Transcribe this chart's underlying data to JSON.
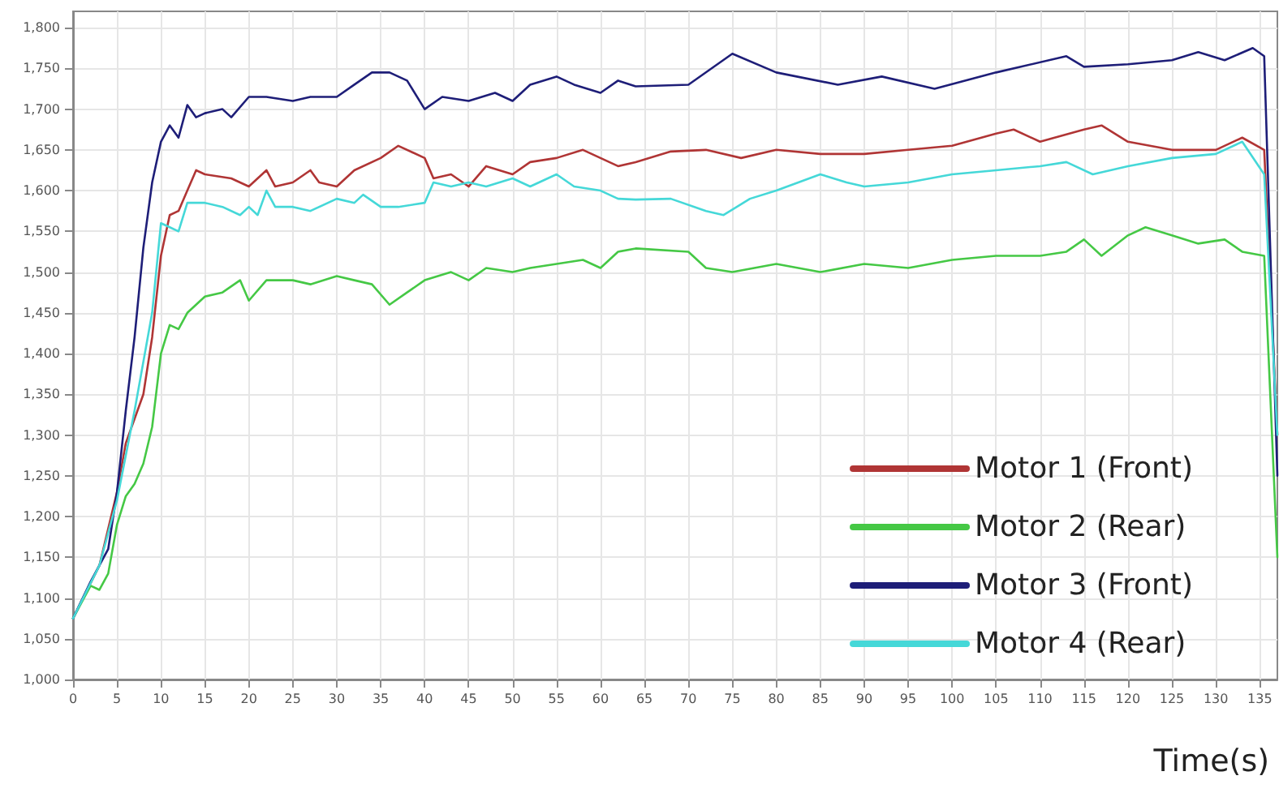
{
  "chart_data": {
    "type": "line",
    "xlabel": "Time(s)",
    "xlim": [
      0,
      137
    ],
    "xticks": [
      0,
      5,
      10,
      15,
      20,
      25,
      30,
      35,
      40,
      45,
      50,
      55,
      60,
      65,
      70,
      75,
      80,
      85,
      90,
      95,
      100,
      105,
      110,
      115,
      120,
      125,
      130,
      135
    ],
    "ylim": [
      1000,
      1820
    ],
    "yticks": [
      {
        "value": 1000,
        "label": "1,000"
      },
      {
        "value": 1050,
        "label": "1,050"
      },
      {
        "value": 1100,
        "label": "1,100"
      },
      {
        "value": 1150,
        "label": "1,150"
      },
      {
        "value": 1200,
        "label": "1,200"
      },
      {
        "value": 1250,
        "label": "1,250"
      },
      {
        "value": 1300,
        "label": "1,300"
      },
      {
        "value": 1350,
        "label": "1,350"
      },
      {
        "value": 1400,
        "label": "1,400"
      },
      {
        "value": 1450,
        "label": "1,450"
      },
      {
        "value": 1500,
        "label": "1,500"
      },
      {
        "value": 1550,
        "label": "1,550"
      },
      {
        "value": 1600,
        "label": "1,600"
      },
      {
        "value": 1650,
        "label": "1,650"
      },
      {
        "value": 1700,
        "label": "1,700"
      },
      {
        "value": 1750,
        "label": "1,750"
      },
      {
        "value": 1800,
        "label": "1,800"
      }
    ],
    "grid": true,
    "legend": "bottom right",
    "marker": "none",
    "line_style": "solid",
    "series": [
      {
        "name": "Motor 1 (Front)",
        "color": "#b03535",
        "x": [
          0,
          3,
          5,
          6,
          7,
          8,
          9,
          10,
          11,
          12,
          13,
          14,
          15,
          18,
          20,
          22,
          23,
          25,
          27,
          28,
          30,
          32,
          35,
          37,
          40,
          41,
          43,
          45,
          47,
          50,
          52,
          55,
          58,
          60,
          62,
          64,
          68,
          72,
          76,
          80,
          85,
          90,
          95,
          100,
          105,
          107,
          110,
          115,
          117,
          120,
          125,
          130,
          133,
          135.5,
          137
        ],
        "values": [
          1075,
          1140,
          1230,
          1290,
          1320,
          1350,
          1420,
          1520,
          1570,
          1575,
          1600,
          1625,
          1620,
          1615,
          1605,
          1625,
          1605,
          1610,
          1625,
          1610,
          1605,
          1625,
          1640,
          1655,
          1640,
          1615,
          1620,
          1605,
          1630,
          1620,
          1635,
          1640,
          1650,
          1640,
          1630,
          1635,
          1648,
          1650,
          1640,
          1650,
          1645,
          1645,
          1650,
          1655,
          1670,
          1675,
          1660,
          1675,
          1680,
          1660,
          1650,
          1650,
          1665,
          1650,
          1300
        ]
      },
      {
        "name": "Motor 2 (Rear)",
        "color": "#45c845",
        "x": [
          0,
          2,
          3,
          4,
          5,
          6,
          7,
          8,
          9,
          10,
          11,
          12,
          13,
          14,
          15,
          17,
          19,
          20,
          22,
          25,
          27,
          30,
          32,
          34,
          36,
          38,
          40,
          43,
          45,
          47,
          50,
          52,
          55,
          58,
          60,
          62,
          64,
          70,
          72,
          75,
          80,
          85,
          90,
          95,
          100,
          105,
          110,
          113,
          115,
          117,
          120,
          122,
          125,
          128,
          131,
          133,
          135.5,
          137
        ],
        "values": [
          1075,
          1115,
          1110,
          1130,
          1190,
          1225,
          1240,
          1265,
          1310,
          1400,
          1435,
          1430,
          1450,
          1460,
          1470,
          1475,
          1490,
          1465,
          1490,
          1490,
          1485,
          1495,
          1490,
          1485,
          1460,
          1475,
          1490,
          1500,
          1490,
          1505,
          1500,
          1505,
          1510,
          1515,
          1505,
          1525,
          1529,
          1525,
          1505,
          1500,
          1510,
          1500,
          1510,
          1505,
          1515,
          1520,
          1520,
          1525,
          1540,
          1520,
          1545,
          1555,
          1545,
          1535,
          1540,
          1525,
          1520,
          1150
        ]
      },
      {
        "name": "Motor 3 (Front)",
        "color": "#1e1e78",
        "x": [
          0,
          2,
          4,
          5,
          6,
          7,
          8,
          9,
          10,
          11,
          12,
          13,
          14,
          15,
          17,
          18,
          20,
          22,
          25,
          27,
          30,
          32,
          34,
          36,
          38,
          40,
          42,
          45,
          48,
          50,
          52,
          55,
          57,
          60,
          62,
          64,
          70,
          75,
          80,
          87,
          92,
          98,
          105,
          113,
          115,
          120,
          125,
          128,
          131,
          134.2,
          135.5,
          137
        ],
        "values": [
          1075,
          1120,
          1160,
          1230,
          1330,
          1420,
          1530,
          1610,
          1660,
          1680,
          1665,
          1705,
          1690,
          1695,
          1700,
          1690,
          1715,
          1715,
          1710,
          1715,
          1715,
          1730,
          1745,
          1745,
          1735,
          1700,
          1715,
          1710,
          1720,
          1710,
          1730,
          1740,
          1730,
          1720,
          1735,
          1728,
          1730,
          1768,
          1745,
          1730,
          1740,
          1725,
          1745,
          1765,
          1752,
          1755,
          1760,
          1770,
          1760,
          1775,
          1765,
          1250
        ]
      },
      {
        "name": "Motor 4 (Rear)",
        "color": "#45d8d8",
        "x": [
          0,
          3,
          5,
          7,
          9,
          10,
          11,
          12,
          13,
          15,
          17,
          19,
          20,
          21,
          22,
          23,
          25,
          27,
          30,
          32,
          33,
          35,
          37,
          40,
          41,
          43,
          45,
          47,
          50,
          52,
          55,
          57,
          60,
          62,
          64,
          68,
          72,
          74,
          77,
          80,
          85,
          88,
          90,
          95,
          100,
          105,
          110,
          113,
          116,
          120,
          125,
          130,
          133,
          135.5,
          137
        ],
        "values": [
          1075,
          1140,
          1220,
          1330,
          1450,
          1560,
          1555,
          1550,
          1585,
          1585,
          1580,
          1570,
          1580,
          1570,
          1600,
          1580,
          1580,
          1575,
          1590,
          1585,
          1595,
          1580,
          1580,
          1585,
          1610,
          1605,
          1610,
          1605,
          1615,
          1605,
          1620,
          1605,
          1600,
          1590,
          1589,
          1590,
          1575,
          1570,
          1590,
          1600,
          1620,
          1610,
          1605,
          1610,
          1620,
          1625,
          1630,
          1635,
          1620,
          1630,
          1640,
          1645,
          1660,
          1620,
          1300
        ]
      }
    ]
  }
}
